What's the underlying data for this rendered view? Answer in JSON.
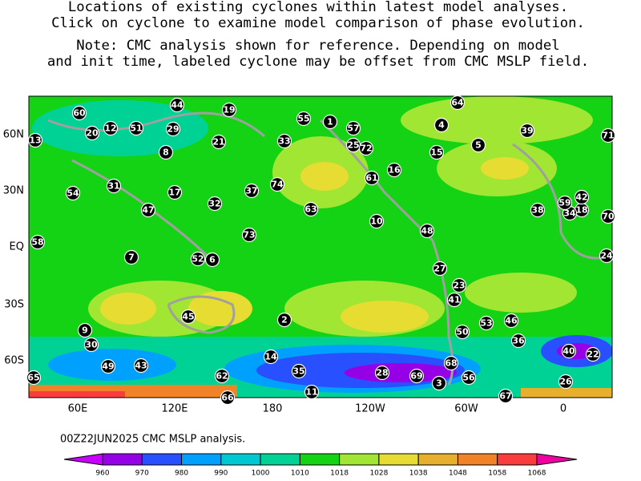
{
  "header": {
    "lines": [
      "Locations of existing cyclones within latest model analyses.",
      "Click on cyclone to examine model comparison of phase evolution.",
      "Note:  CMC analysis shown for reference.  Depending on model",
      "and init time, labeled cyclone may be offset from CMC MSLP field."
    ]
  },
  "map": {
    "lat_labels": [
      "60N",
      "30N",
      "EQ",
      "30S",
      "60S"
    ],
    "lon_labels": [
      "60E",
      "120E",
      "180",
      "120W",
      "60W",
      "0"
    ],
    "cyclones": [
      "1",
      "2",
      "3",
      "4",
      "5",
      "6",
      "7",
      "8",
      "9",
      "10",
      "11",
      "12",
      "13",
      "14",
      "15",
      "16",
      "17",
      "18",
      "19",
      "20",
      "21",
      "22",
      "23",
      "24",
      "25",
      "26",
      "27",
      "28",
      "29",
      "30",
      "31",
      "32",
      "33",
      "34",
      "35",
      "36",
      "37",
      "38",
      "39",
      "40",
      "41",
      "42",
      "43",
      "44",
      "45",
      "46",
      "47",
      "48",
      "49",
      "50",
      "51",
      "52",
      "53",
      "54",
      "55",
      "56",
      "57",
      "58",
      "59",
      "60",
      "61",
      "62",
      "63",
      "64",
      "65",
      "66",
      "67",
      "68",
      "69",
      "70",
      "71",
      "72",
      "73",
      "74"
    ]
  },
  "footer": {
    "caption": "00Z22JUN2025 CMC MSLP analysis."
  },
  "colorbar": {
    "ticks": [
      960,
      970,
      980,
      990,
      1000,
      1010,
      1018,
      1028,
      1038,
      1048,
      1058,
      1068
    ],
    "colors": [
      "#c800ff",
      "#9600e6",
      "#2850ff",
      "#00a0ff",
      "#00c8d2",
      "#00d296",
      "#14d214",
      "#a0e632",
      "#e6dc32",
      "#e6af2d",
      "#f08228",
      "#fa3c3c",
      "#f000a0"
    ]
  }
}
